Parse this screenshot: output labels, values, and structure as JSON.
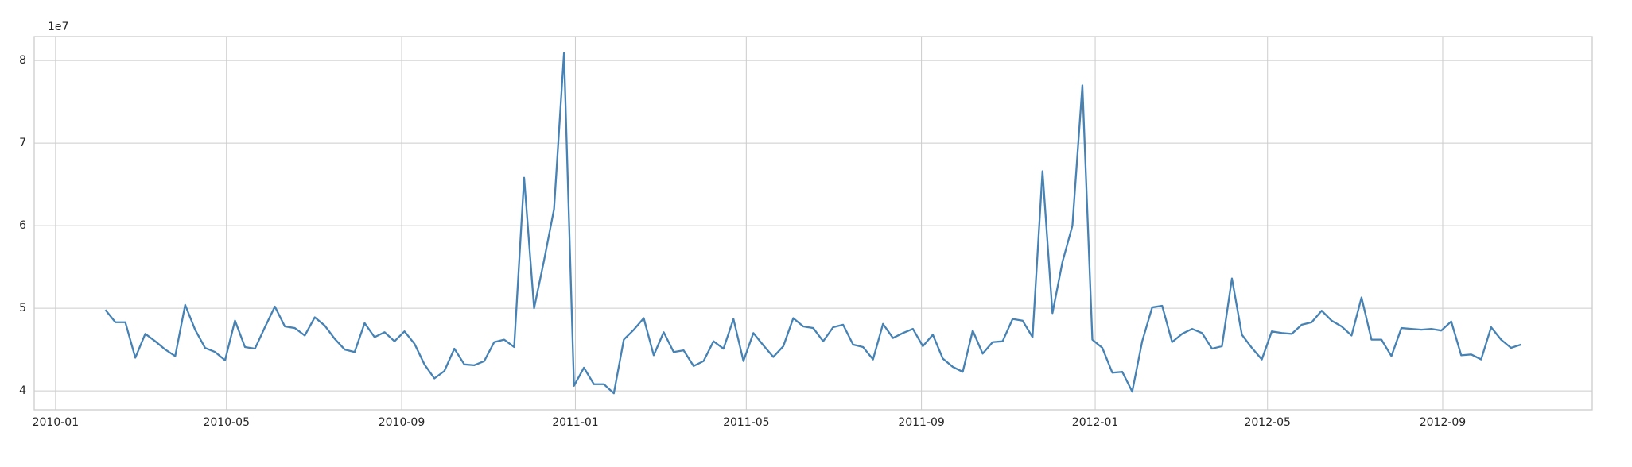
{
  "chart_data": {
    "type": "line",
    "offset_label": "1e7",
    "x": [
      "2010-02-05",
      "2010-02-12",
      "2010-02-19",
      "2010-02-26",
      "2010-03-05",
      "2010-03-12",
      "2010-03-19",
      "2010-03-26",
      "2010-04-02",
      "2010-04-09",
      "2010-04-16",
      "2010-04-23",
      "2010-04-30",
      "2010-05-07",
      "2010-05-14",
      "2010-05-21",
      "2010-05-28",
      "2010-06-04",
      "2010-06-11",
      "2010-06-18",
      "2010-06-25",
      "2010-07-02",
      "2010-07-09",
      "2010-07-16",
      "2010-07-23",
      "2010-07-30",
      "2010-08-06",
      "2010-08-13",
      "2010-08-20",
      "2010-08-27",
      "2010-09-03",
      "2010-09-10",
      "2010-09-17",
      "2010-09-24",
      "2010-10-01",
      "2010-10-08",
      "2010-10-15",
      "2010-10-22",
      "2010-10-29",
      "2010-11-05",
      "2010-11-12",
      "2010-11-19",
      "2010-11-26",
      "2010-12-03",
      "2010-12-10",
      "2010-12-17",
      "2010-12-24",
      "2010-12-31",
      "2011-01-07",
      "2011-01-14",
      "2011-01-21",
      "2011-01-28",
      "2011-02-04",
      "2011-02-11",
      "2011-02-18",
      "2011-02-25",
      "2011-03-04",
      "2011-03-11",
      "2011-03-18",
      "2011-03-25",
      "2011-04-01",
      "2011-04-08",
      "2011-04-15",
      "2011-04-22",
      "2011-04-29",
      "2011-05-06",
      "2011-05-13",
      "2011-05-20",
      "2011-05-27",
      "2011-06-03",
      "2011-06-10",
      "2011-06-17",
      "2011-06-24",
      "2011-07-01",
      "2011-07-08",
      "2011-07-15",
      "2011-07-22",
      "2011-07-29",
      "2011-08-05",
      "2011-08-12",
      "2011-08-19",
      "2011-08-26",
      "2011-09-02",
      "2011-09-09",
      "2011-09-16",
      "2011-09-23",
      "2011-09-30",
      "2011-10-07",
      "2011-10-14",
      "2011-10-21",
      "2011-10-28",
      "2011-11-04",
      "2011-11-11",
      "2011-11-18",
      "2011-11-25",
      "2011-12-02",
      "2011-12-09",
      "2011-12-16",
      "2011-12-23",
      "2011-12-30",
      "2012-01-06",
      "2012-01-13",
      "2012-01-20",
      "2012-01-27",
      "2012-02-03",
      "2012-02-10",
      "2012-02-17",
      "2012-02-24",
      "2012-03-02",
      "2012-03-09",
      "2012-03-16",
      "2012-03-23",
      "2012-03-30",
      "2012-04-06",
      "2012-04-13",
      "2012-04-20",
      "2012-04-27",
      "2012-05-04",
      "2012-05-11",
      "2012-05-18",
      "2012-05-25",
      "2012-06-01",
      "2012-06-08",
      "2012-06-15",
      "2012-06-22",
      "2012-06-29",
      "2012-07-06",
      "2012-07-13",
      "2012-07-20",
      "2012-07-27",
      "2012-08-03",
      "2012-08-10",
      "2012-08-17",
      "2012-08-24",
      "2012-08-31",
      "2012-09-07",
      "2012-09-14",
      "2012-09-21",
      "2012-09-28",
      "2012-10-05",
      "2012-10-12",
      "2012-10-19",
      "2012-10-26"
    ],
    "values": [
      4.98,
      4.83,
      4.83,
      4.4,
      4.69,
      4.6,
      4.5,
      4.42,
      5.04,
      4.74,
      4.52,
      4.47,
      4.37,
      4.85,
      4.53,
      4.51,
      4.77,
      5.02,
      4.78,
      4.76,
      4.67,
      4.89,
      4.79,
      4.63,
      4.5,
      4.47,
      4.82,
      4.65,
      4.71,
      4.6,
      4.72,
      4.57,
      4.32,
      4.15,
      4.24,
      4.51,
      4.32,
      4.31,
      4.36,
      4.59,
      4.62,
      4.53,
      6.58,
      5.0,
      5.58,
      6.2,
      8.09,
      4.06,
      4.28,
      4.08,
      4.08,
      3.97,
      4.62,
      4.74,
      4.88,
      4.43,
      4.71,
      4.47,
      4.49,
      4.3,
      4.36,
      4.6,
      4.51,
      4.87,
      4.36,
      4.7,
      4.55,
      4.41,
      4.54,
      4.88,
      4.78,
      4.76,
      4.6,
      4.77,
      4.8,
      4.56,
      4.53,
      4.38,
      4.81,
      4.64,
      4.7,
      4.75,
      4.54,
      4.68,
      4.39,
      4.29,
      4.23,
      4.73,
      4.45,
      4.59,
      4.6,
      4.87,
      4.85,
      4.65,
      6.66,
      4.94,
      5.56,
      6.0,
      7.7,
      4.62,
      4.52,
      4.22,
      4.23,
      3.99,
      4.6,
      5.01,
      5.03,
      4.59,
      4.69,
      4.75,
      4.7,
      4.51,
      4.54,
      5.36,
      4.68,
      4.52,
      4.38,
      4.72,
      4.7,
      4.69,
      4.8,
      4.83,
      4.97,
      4.85,
      4.78,
      4.67,
      5.13,
      4.62,
      4.62,
      4.42,
      4.76,
      4.75,
      4.74,
      4.75,
      4.73,
      4.84,
      4.43,
      4.44,
      4.38,
      4.77,
      4.62,
      4.52,
      4.56
    ],
    "color": "#4682b4",
    "xlim": [
      "2009-12-17",
      "2012-12-15"
    ],
    "xticks": [
      "2010-01",
      "2010-05",
      "2010-09",
      "2011-01",
      "2011-05",
      "2011-09",
      "2012-01",
      "2012-05",
      "2012-09"
    ],
    "ylim": [
      3.77,
      8.29
    ],
    "yticks": [
      4,
      5,
      6,
      7,
      8
    ],
    "grid": true
  }
}
